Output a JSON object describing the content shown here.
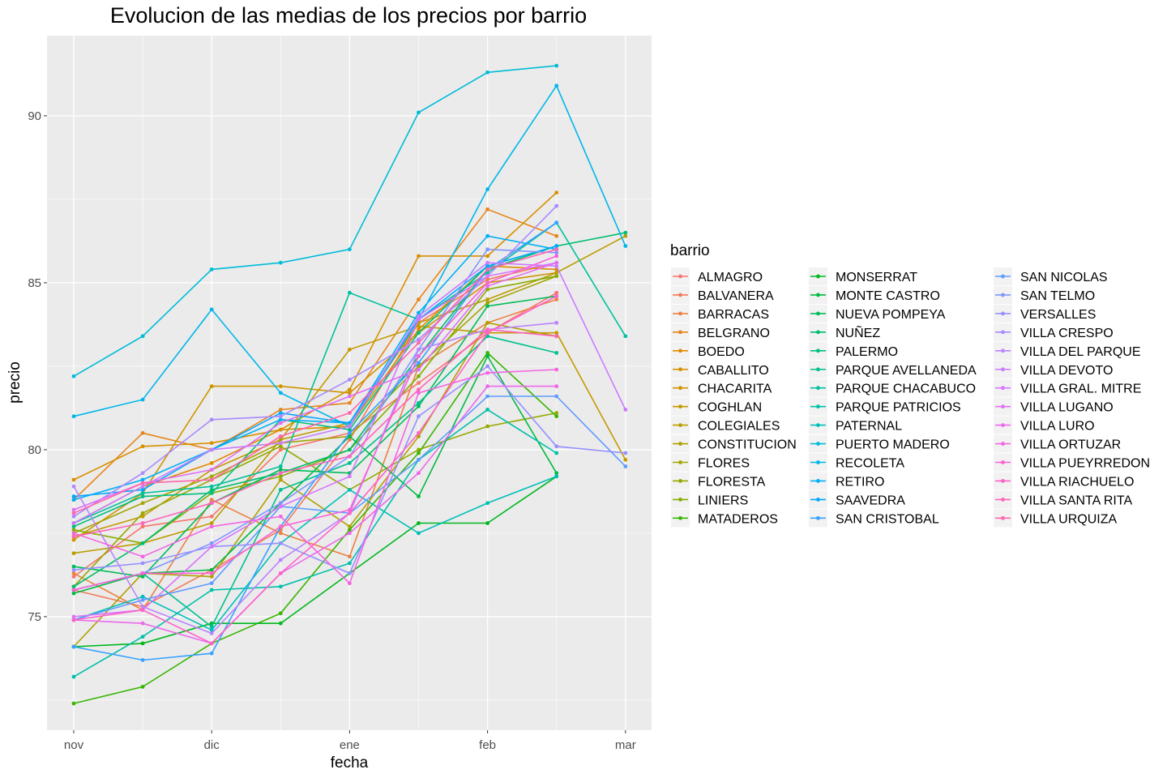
{
  "chart_data": {
    "type": "line",
    "title": "Evolucion de las medias de los precios por barrio",
    "xlabel": "fecha",
    "ylabel": "precio",
    "x_ticks": [
      "nov",
      "dic",
      "ene",
      "feb",
      "mar"
    ],
    "x_positions": [
      "nov",
      "nov-mid",
      "dic",
      "dic-mid",
      "ene",
      "ene-mid",
      "feb",
      "feb-mid",
      "mar"
    ],
    "y_ticks": [
      75,
      80,
      85,
      90
    ],
    "ylim": [
      71.6,
      92.4
    ],
    "grid": true,
    "legend_title": "barrio",
    "legend_position": "right",
    "series": [
      {
        "name": "ALMAGRO",
        "color": "#F8766D",
        "values": [
          76.2,
          77.7,
          78.0,
          80.0,
          80.5,
          82.0,
          83.5,
          84.7,
          null
        ]
      },
      {
        "name": "BALVANERA",
        "color": "#F37B59",
        "values": [
          75.8,
          75.3,
          76.4,
          77.6,
          80.3,
          83.8,
          85.1,
          85.6,
          null
        ]
      },
      {
        "name": "BARRACAS",
        "color": "#ED8141",
        "values": [
          76.3,
          75.2,
          78.5,
          77.5,
          76.8,
          82.5,
          83.8,
          84.5,
          null
        ]
      },
      {
        "name": "BELGRANO",
        "color": "#E7861B",
        "values": [
          78.5,
          80.5,
          80.0,
          81.2,
          81.4,
          84.5,
          87.2,
          86.4,
          null
        ]
      },
      {
        "name": "BOEDO",
        "color": "#E08B00",
        "values": [
          77.8,
          78.9,
          79.6,
          80.6,
          80.7,
          83.6,
          85.5,
          85.4,
          null
        ]
      },
      {
        "name": "CABALLITO",
        "color": "#D89000",
        "values": [
          79.1,
          80.1,
          80.2,
          80.6,
          81.8,
          85.8,
          85.8,
          87.7,
          null
        ]
      },
      {
        "name": "CHACARITA",
        "color": "#CF9400",
        "values": [
          77.3,
          78.7,
          81.9,
          81.9,
          81.7,
          83.5,
          85.0,
          85.3,
          null
        ]
      },
      {
        "name": "COGHLAN",
        "color": "#C59900",
        "values": [
          77.4,
          78.0,
          79.4,
          80.3,
          83.0,
          83.7,
          83.5,
          83.5,
          79.7
        ]
      },
      {
        "name": "COLEGIALES",
        "color": "#BB9D00",
        "values": [
          76.9,
          77.2,
          77.8,
          80.3,
          80.8,
          83.8,
          84.5,
          85.3,
          86.4
        ]
      },
      {
        "name": "CONSTITUCION",
        "color": "#AFA100",
        "values": [
          74.1,
          76.3,
          76.2,
          79.1,
          77.7,
          80.4,
          83.8,
          83.4,
          null
        ]
      },
      {
        "name": "FLORES",
        "color": "#A3A500",
        "values": [
          77.5,
          78.4,
          79.2,
          80.2,
          80.4,
          82.5,
          84.4,
          85.2,
          null
        ]
      },
      {
        "name": "FLORESTA",
        "color": "#95A900",
        "values": [
          75.9,
          78.1,
          79.1,
          80.1,
          78.8,
          80.0,
          80.7,
          81.1,
          null
        ]
      },
      {
        "name": "LINIERS",
        "color": "#86AC00",
        "values": [
          77.6,
          77.2,
          78.7,
          79.2,
          80.0,
          82.2,
          84.8,
          85.2,
          null
        ]
      },
      {
        "name": "MATADEROS",
        "color": "#39B600",
        "values": [
          72.4,
          72.9,
          74.2,
          75.1,
          77.6,
          79.9,
          82.9,
          81.0,
          null
        ]
      },
      {
        "name": "MONSERRAT",
        "color": "#00B81F",
        "values": [
          74.1,
          74.2,
          74.8,
          74.8,
          76.3,
          77.8,
          77.8,
          79.2,
          null
        ]
      },
      {
        "name": "MONTE CASTRO",
        "color": "#00BA42",
        "values": [
          75.7,
          76.3,
          76.4,
          78.4,
          80.4,
          78.6,
          82.8,
          79.3,
          null
        ]
      },
      {
        "name": "NUEVA POMPEYA",
        "color": "#00BC59",
        "values": [
          76.5,
          76.2,
          78.4,
          79.4,
          79.3,
          81.3,
          84.3,
          84.6,
          null
        ]
      },
      {
        "name": "NUÑEZ",
        "color": "#00BE6C",
        "values": [
          75.9,
          77.2,
          78.8,
          79.3,
          80.0,
          82.8,
          85.4,
          86.1,
          86.5
        ]
      },
      {
        "name": "PALERMO",
        "color": "#00BF7D",
        "values": [
          77.7,
          78.6,
          78.7,
          80.9,
          80.6,
          83.5,
          85.5,
          86.1,
          null
        ]
      },
      {
        "name": "PARQUE AVELLANEDA",
        "color": "#00C08D",
        "values": [
          75.8,
          76.3,
          74.7,
          78.8,
          79.6,
          81.4,
          83.4,
          82.9,
          null
        ]
      },
      {
        "name": "PARQUE CHACABUCO",
        "color": "#00C19C",
        "values": [
          77.8,
          78.7,
          78.9,
          79.5,
          84.7,
          83.9,
          85.3,
          86.8,
          83.4
        ]
      },
      {
        "name": "PARQUE PATRICIOS",
        "color": "#00C0AB",
        "values": [
          73.2,
          74.4,
          75.8,
          75.9,
          76.6,
          79.7,
          81.2,
          79.9,
          null
        ]
      },
      {
        "name": "PATERNAL",
        "color": "#00BFB8",
        "values": [
          74.9,
          75.6,
          74.6,
          77.2,
          78.8,
          77.5,
          78.4,
          79.2,
          null
        ]
      },
      {
        "name": "PUERTO MADERO",
        "color": "#00BCD8",
        "values": [
          82.2,
          83.4,
          85.4,
          85.6,
          86.0,
          90.1,
          91.3,
          91.5,
          null
        ]
      },
      {
        "name": "RECOLETA",
        "color": "#00B6EB",
        "values": [
          81.0,
          81.5,
          84.2,
          81.7,
          80.7,
          83.9,
          87.8,
          90.9,
          86.1
        ]
      },
      {
        "name": "RETIRO",
        "color": "#00B0F6",
        "values": [
          78.5,
          79.1,
          80.0,
          80.9,
          80.8,
          84.1,
          86.4,
          86.0,
          null
        ]
      },
      {
        "name": "SAAVEDRA",
        "color": "#00A9FF",
        "values": [
          78.6,
          78.8,
          80.0,
          81.1,
          80.8,
          83.9,
          85.5,
          86.1,
          null
        ]
      },
      {
        "name": "SAN CRISTOBAL",
        "color": "#35A2FF",
        "values": [
          74.1,
          73.7,
          73.9,
          77.7,
          80.5,
          82.6,
          85.4,
          86.8,
          null
        ]
      },
      {
        "name": "SAN NICOLAS",
        "color": "#619CFF",
        "values": [
          74.9,
          75.5,
          76.0,
          78.3,
          78.1,
          79.7,
          81.6,
          81.6,
          79.5
        ]
      },
      {
        "name": "SAN TELMO",
        "color": "#7F96FF",
        "values": [
          75.8,
          76.3,
          77.2,
          78.4,
          79.8,
          83.0,
          86.0,
          85.9,
          null
        ]
      },
      {
        "name": "VERSALLES",
        "color": "#9590FF",
        "values": [
          76.4,
          76.6,
          77.1,
          77.2,
          76.3,
          81.0,
          82.5,
          80.1,
          79.9
        ]
      },
      {
        "name": "VILLA CRESPO",
        "color": "#A989FF",
        "values": [
          78.0,
          79.3,
          80.9,
          81.0,
          82.1,
          83.3,
          85.2,
          87.3,
          null
        ]
      },
      {
        "name": "VILLA DEL PARQUE",
        "color": "#BB83FF",
        "values": [
          78.9,
          75.3,
          74.5,
          76.7,
          78.1,
          83.0,
          83.6,
          83.8,
          null
        ]
      },
      {
        "name": "VILLA DEVOTO",
        "color": "#CB7BFF",
        "values": [
          77.8,
          78.9,
          80.0,
          80.2,
          80.7,
          84.0,
          85.6,
          85.5,
          81.2
        ]
      },
      {
        "name": "VILLA GRAL. MITRE",
        "color": "#D874FD",
        "values": [
          75.0,
          75.2,
          77.1,
          78.3,
          79.2,
          83.9,
          85.2,
          85.6,
          null
        ]
      },
      {
        "name": "VILLA LUGANO",
        "color": "#E36EF6",
        "values": [
          78.2,
          79.0,
          79.4,
          80.8,
          81.6,
          82.4,
          84.9,
          85.6,
          null
        ]
      },
      {
        "name": "VILLA LURO",
        "color": "#ED68ED",
        "values": [
          74.9,
          74.8,
          74.2,
          76.3,
          77.5,
          79.3,
          81.9,
          81.9,
          null
        ]
      },
      {
        "name": "VILLA ORTUZAR",
        "color": "#F564E3",
        "values": [
          77.5,
          76.8,
          77.7,
          78.0,
          76.0,
          81.7,
          82.3,
          82.4,
          null
        ]
      },
      {
        "name": "VILLA PUEYRREDON",
        "color": "#FB61D7",
        "values": [
          75.8,
          76.3,
          76.3,
          77.7,
          78.2,
          82.8,
          85.0,
          85.8,
          null
        ]
      },
      {
        "name": "VILLA RIACHUELO",
        "color": "#FF61C9",
        "values": [
          74.9,
          75.2,
          74.2,
          76.3,
          78.1,
          80.5,
          83.5,
          84.6,
          null
        ]
      },
      {
        "name": "VILLA SANTA RITA",
        "color": "#FF62BC",
        "values": [
          77.4,
          77.8,
          78.4,
          79.3,
          79.8,
          81.8,
          83.6,
          83.4,
          null
        ]
      },
      {
        "name": "VILLA URQUIZA",
        "color": "#FF65AE",
        "values": [
          78.1,
          79.0,
          79.1,
          80.4,
          81.1,
          83.2,
          85.4,
          86.0,
          null
        ]
      }
    ]
  }
}
